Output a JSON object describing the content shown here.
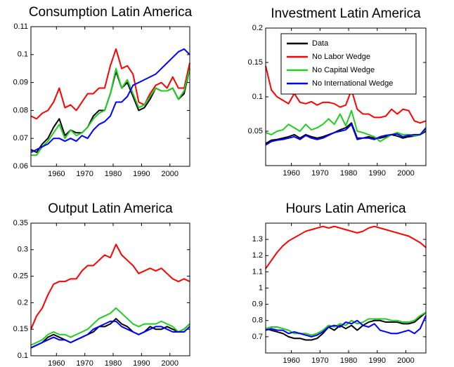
{
  "chart_data": [
    {
      "type": "line",
      "title": "Consumption Latin America",
      "x": [
        1951,
        1953,
        1955,
        1957,
        1959,
        1961,
        1963,
        1965,
        1967,
        1969,
        1971,
        1973,
        1975,
        1977,
        1979,
        1981,
        1983,
        1985,
        1987,
        1989,
        1991,
        1993,
        1995,
        1997,
        1999,
        2001,
        2003,
        2005,
        2007
      ],
      "xlim": [
        1951,
        2007
      ],
      "xticks": [
        1960,
        1970,
        1980,
        1990,
        2000
      ],
      "ylim": [
        0.06,
        0.11
      ],
      "yticks": [
        0.06,
        0.07,
        0.08,
        0.09,
        0.1,
        0.11
      ],
      "series": [
        {
          "color": "#ff0000",
          "values": [
            0.078,
            0.077,
            0.079,
            0.08,
            0.083,
            0.088,
            0.081,
            0.082,
            0.08,
            0.083,
            0.086,
            0.086,
            0.088,
            0.088,
            0.096,
            0.102,
            0.095,
            0.096,
            0.093,
            0.083,
            0.082,
            0.086,
            0.089,
            0.09,
            0.088,
            0.092,
            0.088,
            0.088,
            0.097
          ]
        },
        {
          "color": "#000000",
          "values": [
            0.066,
            0.065,
            0.068,
            0.07,
            0.074,
            0.077,
            0.071,
            0.073,
            0.072,
            0.072,
            0.074,
            0.078,
            0.08,
            0.08,
            0.086,
            0.094,
            0.088,
            0.09,
            0.085,
            0.08,
            0.081,
            0.084,
            0.088,
            0.087,
            0.087,
            0.088,
            0.084,
            0.086,
            0.095
          ]
        },
        {
          "color": "#22cc22",
          "values": [
            0.064,
            0.064,
            0.067,
            0.069,
            0.072,
            0.075,
            0.07,
            0.073,
            0.071,
            0.072,
            0.074,
            0.077,
            0.079,
            0.08,
            0.086,
            0.095,
            0.088,
            0.091,
            0.086,
            0.081,
            0.082,
            0.085,
            0.088,
            0.087,
            0.087,
            0.088,
            0.084,
            0.087,
            0.095
          ]
        },
        {
          "color": "#0000ff",
          "values": [
            0.065,
            0.066,
            0.067,
            0.068,
            0.07,
            0.07,
            0.069,
            0.07,
            0.069,
            0.071,
            0.07,
            0.073,
            0.075,
            0.076,
            0.078,
            0.083,
            0.083,
            0.085,
            0.089,
            0.09,
            0.091,
            0.092,
            0.093,
            0.095,
            0.097,
            0.099,
            0.101,
            0.102,
            0.1
          ]
        }
      ]
    },
    {
      "type": "line",
      "title": "Investment Latin America",
      "x": [
        1951,
        1953,
        1955,
        1957,
        1959,
        1961,
        1963,
        1965,
        1967,
        1969,
        1971,
        1973,
        1975,
        1977,
        1979,
        1981,
        1983,
        1985,
        1987,
        1989,
        1991,
        1993,
        1995,
        1997,
        1999,
        2001,
        2003,
        2005,
        2007
      ],
      "xlim": [
        1951,
        2007
      ],
      "xticks": [
        1960,
        1970,
        1980,
        1990,
        2000
      ],
      "ylim": [
        0,
        0.2
      ],
      "yticks": [
        0.05,
        0.1,
        0.15,
        0.2
      ],
      "legend": "upper right",
      "series": [
        {
          "name": "Data",
          "color": "#000000",
          "values": [
            0.032,
            0.037,
            0.038,
            0.04,
            0.042,
            0.045,
            0.04,
            0.045,
            0.042,
            0.04,
            0.042,
            0.045,
            0.048,
            0.052,
            0.055,
            0.062,
            0.04,
            0.04,
            0.042,
            0.04,
            0.04,
            0.042,
            0.045,
            0.043,
            0.04,
            0.042,
            0.043,
            0.045,
            0.05
          ]
        },
        {
          "name": "No Labor Wedge",
          "color": "#ff0000",
          "values": [
            0.145,
            0.11,
            0.1,
            0.095,
            0.09,
            0.105,
            0.092,
            0.09,
            0.093,
            0.088,
            0.092,
            0.092,
            0.09,
            0.085,
            0.088,
            0.11,
            0.082,
            0.075,
            0.075,
            0.07,
            0.07,
            0.072,
            0.082,
            0.075,
            0.082,
            0.08,
            0.065,
            0.062,
            0.065
          ]
        },
        {
          "name": "No Capital Wedge",
          "color": "#22cc22",
          "values": [
            0.048,
            0.045,
            0.05,
            0.052,
            0.06,
            0.055,
            0.05,
            0.06,
            0.052,
            0.055,
            0.06,
            0.068,
            0.06,
            0.075,
            0.058,
            0.08,
            0.05,
            0.048,
            0.045,
            0.042,
            0.035,
            0.04,
            0.045,
            0.048,
            0.045,
            0.045,
            0.043,
            0.045,
            0.053
          ]
        },
        {
          "name": "No International Wedge",
          "color": "#0000ff",
          "values": [
            0.03,
            0.035,
            0.037,
            0.038,
            0.04,
            0.042,
            0.038,
            0.044,
            0.04,
            0.038,
            0.04,
            0.044,
            0.048,
            0.05,
            0.052,
            0.06,
            0.038,
            0.04,
            0.04,
            0.038,
            0.042,
            0.044,
            0.045,
            0.046,
            0.042,
            0.044,
            0.045,
            0.045,
            0.055
          ]
        }
      ]
    },
    {
      "type": "line",
      "title": "Output Latin America",
      "x": [
        1951,
        1953,
        1955,
        1957,
        1959,
        1961,
        1963,
        1965,
        1967,
        1969,
        1971,
        1973,
        1975,
        1977,
        1979,
        1981,
        1983,
        1985,
        1987,
        1989,
        1991,
        1993,
        1995,
        1997,
        1999,
        2001,
        2003,
        2005,
        2007
      ],
      "xlim": [
        1951,
        2007
      ],
      "xticks": [
        1960,
        1970,
        1980,
        1990,
        2000
      ],
      "ylim": [
        0.1,
        0.35
      ],
      "yticks": [
        0.1,
        0.15,
        0.2,
        0.25,
        0.3,
        0.35
      ],
      "series": [
        {
          "color": "#ff0000",
          "values": [
            0.15,
            0.175,
            0.19,
            0.215,
            0.235,
            0.24,
            0.24,
            0.245,
            0.245,
            0.26,
            0.27,
            0.27,
            0.28,
            0.29,
            0.285,
            0.31,
            0.29,
            0.28,
            0.27,
            0.255,
            0.26,
            0.265,
            0.26,
            0.265,
            0.255,
            0.245,
            0.24,
            0.245,
            0.24
          ]
        },
        {
          "color": "#000000",
          "values": [
            0.115,
            0.12,
            0.125,
            0.135,
            0.14,
            0.135,
            0.13,
            0.125,
            0.13,
            0.135,
            0.14,
            0.145,
            0.155,
            0.155,
            0.16,
            0.17,
            0.16,
            0.155,
            0.145,
            0.14,
            0.145,
            0.155,
            0.15,
            0.15,
            0.155,
            0.15,
            0.145,
            0.15,
            0.16
          ]
        },
        {
          "color": "#22cc22",
          "values": [
            0.12,
            0.125,
            0.13,
            0.14,
            0.145,
            0.14,
            0.14,
            0.135,
            0.14,
            0.145,
            0.15,
            0.16,
            0.17,
            0.175,
            0.18,
            0.19,
            0.18,
            0.17,
            0.16,
            0.155,
            0.16,
            0.16,
            0.16,
            0.165,
            0.16,
            0.155,
            0.145,
            0.15,
            0.16
          ]
        },
        {
          "color": "#0000ff",
          "values": [
            0.115,
            0.12,
            0.125,
            0.13,
            0.135,
            0.13,
            0.13,
            0.125,
            0.13,
            0.135,
            0.14,
            0.15,
            0.155,
            0.16,
            0.165,
            0.165,
            0.155,
            0.15,
            0.145,
            0.14,
            0.145,
            0.15,
            0.155,
            0.155,
            0.15,
            0.145,
            0.145,
            0.145,
            0.155
          ]
        }
      ]
    },
    {
      "type": "line",
      "title": "Hours Latin America",
      "x": [
        1951,
        1953,
        1955,
        1957,
        1959,
        1961,
        1963,
        1965,
        1967,
        1969,
        1971,
        1973,
        1975,
        1977,
        1979,
        1981,
        1983,
        1985,
        1987,
        1989,
        1991,
        1993,
        1995,
        1997,
        1999,
        2001,
        2003,
        2005,
        2007
      ],
      "xlim": [
        1951,
        2007
      ],
      "xticks": [
        1960,
        1970,
        1980,
        1990,
        2000
      ],
      "ylim": [
        0.6,
        1.4
      ],
      "yticks": [
        0.7,
        0.8,
        0.9,
        1,
        1.1,
        1.2,
        1.3
      ],
      "series": [
        {
          "color": "#ff0000",
          "values": [
            1.12,
            1.17,
            1.22,
            1.26,
            1.29,
            1.31,
            1.33,
            1.35,
            1.36,
            1.37,
            1.38,
            1.37,
            1.38,
            1.37,
            1.36,
            1.35,
            1.34,
            1.35,
            1.37,
            1.38,
            1.37,
            1.36,
            1.35,
            1.34,
            1.33,
            1.32,
            1.3,
            1.28,
            1.25
          ]
        },
        {
          "color": "#000000",
          "values": [
            0.75,
            0.74,
            0.73,
            0.72,
            0.7,
            0.69,
            0.69,
            0.68,
            0.68,
            0.69,
            0.72,
            0.76,
            0.74,
            0.77,
            0.75,
            0.77,
            0.74,
            0.77,
            0.79,
            0.8,
            0.8,
            0.79,
            0.79,
            0.79,
            0.78,
            0.78,
            0.79,
            0.82,
            0.85
          ]
        },
        {
          "color": "#22cc22",
          "values": [
            0.75,
            0.76,
            0.76,
            0.75,
            0.74,
            0.72,
            0.72,
            0.72,
            0.71,
            0.72,
            0.74,
            0.77,
            0.76,
            0.78,
            0.77,
            0.8,
            0.78,
            0.79,
            0.81,
            0.81,
            0.81,
            0.81,
            0.8,
            0.8,
            0.79,
            0.79,
            0.8,
            0.83,
            0.85
          ]
        },
        {
          "color": "#0000ff",
          "values": [
            0.74,
            0.75,
            0.74,
            0.74,
            0.72,
            0.73,
            0.72,
            0.71,
            0.7,
            0.71,
            0.73,
            0.76,
            0.77,
            0.76,
            0.79,
            0.78,
            0.8,
            0.77,
            0.76,
            0.78,
            0.74,
            0.73,
            0.72,
            0.72,
            0.73,
            0.74,
            0.72,
            0.75,
            0.83
          ]
        }
      ]
    }
  ]
}
